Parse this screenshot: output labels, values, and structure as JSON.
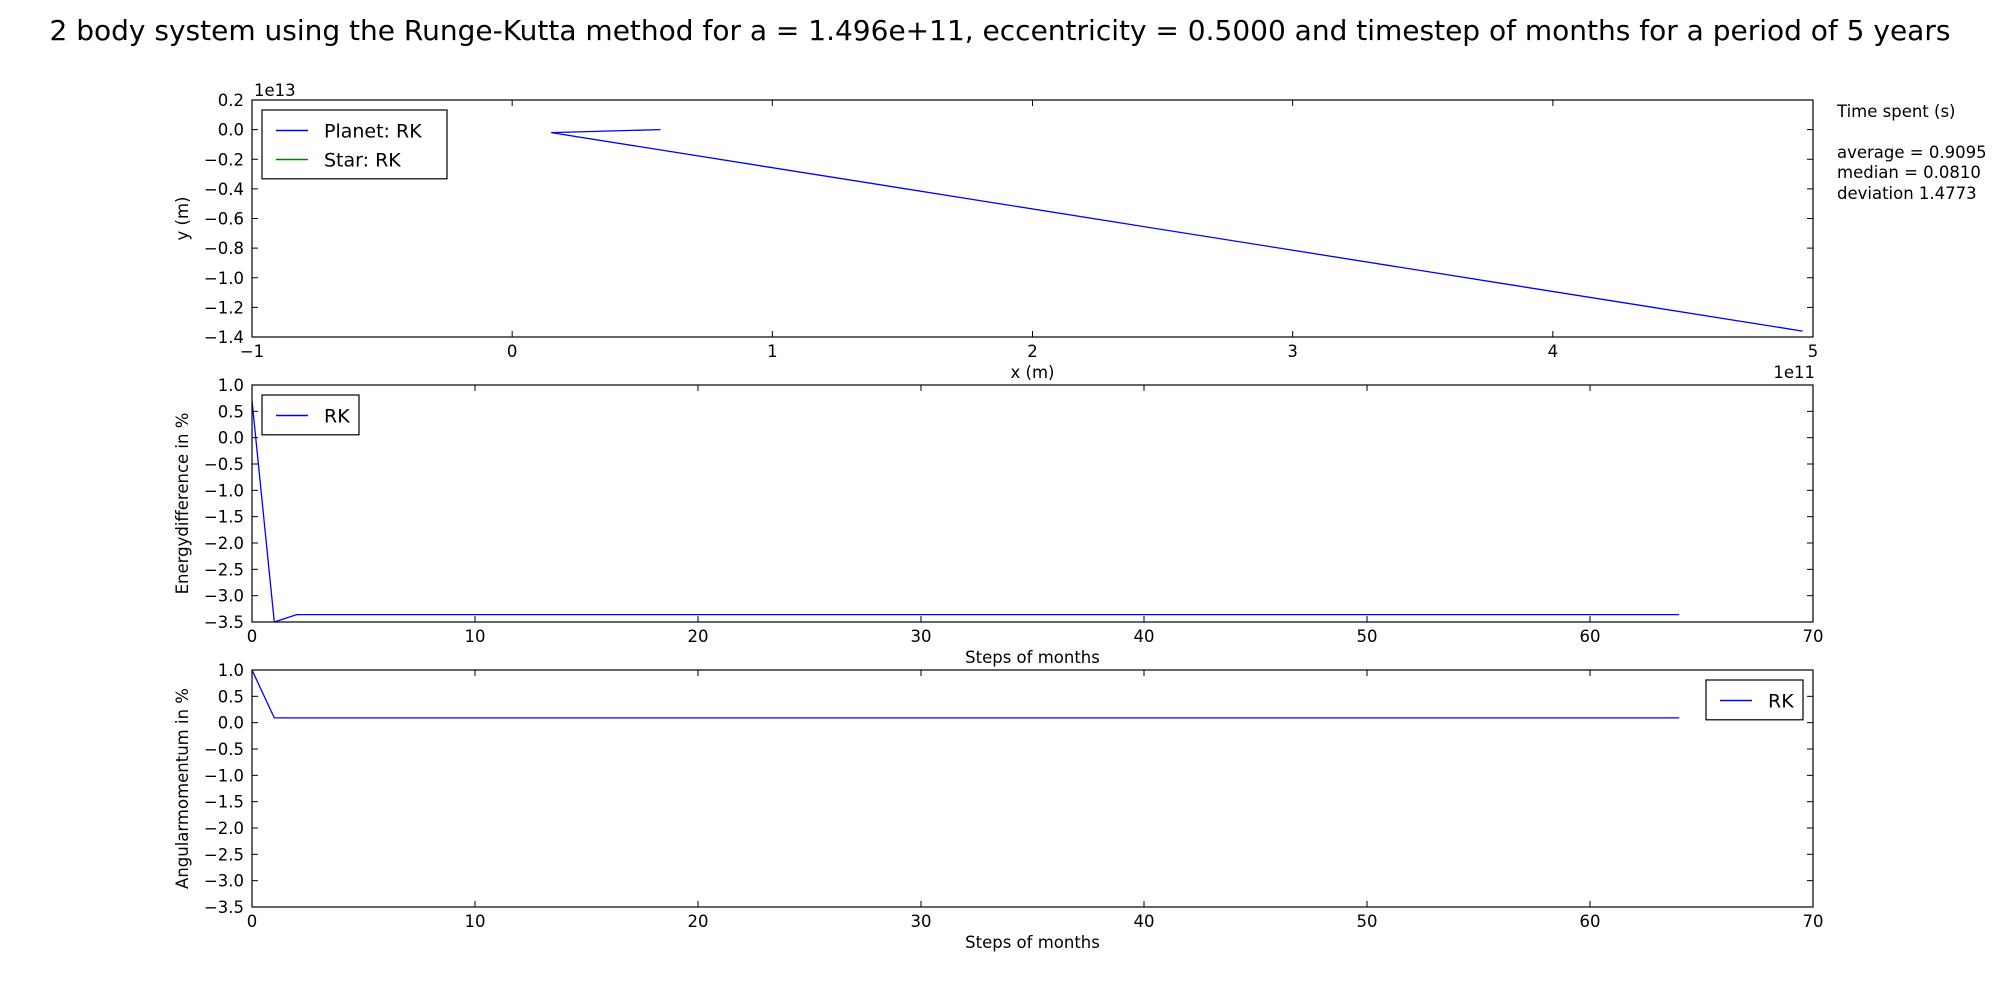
{
  "figure": {
    "title": "2 body system using the Runge-Kutta method for a = 1.496e+11, eccentricity = 0.5000 and timestep of months for a period of 5 years"
  },
  "info_panel": {
    "heading": "Time spent (s)",
    "average": "average = 0.9095",
    "median": "median = 0.0810",
    "deviation": "deviation 1.4773"
  },
  "colors": {
    "series_blue": "#0000ff",
    "series_green": "#008000",
    "axes": "#000000"
  },
  "chart_data": [
    {
      "type": "line",
      "xlabel": "x (m)",
      "ylabel": "y (m)",
      "x_offset_label": "1e11",
      "y_offset_label": "1e13",
      "xlim": [
        -100000000000.0,
        500000000000.0
      ],
      "ylim": [
        -14000000000000.0,
        2000000000000.0
      ],
      "x_ticks": [
        -100000000000.0,
        0,
        100000000000.0,
        200000000000.0,
        300000000000.0,
        400000000000.0,
        500000000000.0
      ],
      "x_tick_labels": [
        "−1",
        "0",
        "1",
        "2",
        "3",
        "4",
        "5"
      ],
      "y_ticks": [
        2000000000000.0,
        0,
        -2000000000000.0,
        -4000000000000.0,
        -6000000000000.0,
        -8000000000000.0,
        -10000000000000.0,
        -12000000000000.0,
        -14000000000000.0
      ],
      "y_tick_labels": [
        "0.2",
        "0.0",
        "−0.2",
        "−0.4",
        "−0.6",
        "−0.8",
        "−1.0",
        "−1.2",
        "−1.4"
      ],
      "legend_position": "upper-left",
      "series": [
        {
          "name": "Planet: RK",
          "color": "#0000ff",
          "x": [
            57000000000.0,
            15000000000.0,
            496000000000.0
          ],
          "y": [
            0.0,
            -200000000000.0,
            -13600000000000.0
          ]
        },
        {
          "name": "Star: RK",
          "color": "#008000",
          "x": [
            0.0
          ],
          "y": [
            0.0
          ]
        }
      ]
    },
    {
      "type": "line",
      "xlabel": "Steps of months",
      "ylabel": "Energydifference in %",
      "xlim": [
        0,
        70
      ],
      "ylim": [
        -3.5,
        1.0
      ],
      "x_ticks": [
        0,
        10,
        20,
        30,
        40,
        50,
        60,
        70
      ],
      "x_tick_labels": [
        "0",
        "10",
        "20",
        "30",
        "40",
        "50",
        "60",
        "70"
      ],
      "y_ticks": [
        1.0,
        0.5,
        0.0,
        -0.5,
        -1.0,
        -1.5,
        -2.0,
        -2.5,
        -3.0,
        -3.5
      ],
      "y_tick_labels": [
        "1.0",
        "0.5",
        "0.0",
        "−0.5",
        "−1.0",
        "−1.5",
        "−2.0",
        "−2.5",
        "−3.0",
        "−3.5"
      ],
      "legend_position": "upper-left",
      "series": [
        {
          "name": "RK",
          "color": "#0000ff",
          "x": [
            0,
            1,
            2,
            10,
            20,
            30,
            40,
            50,
            60,
            64
          ],
          "y": [
            0.7,
            -3.5,
            -3.36,
            -3.36,
            -3.36,
            -3.36,
            -3.36,
            -3.36,
            -3.36,
            -3.36
          ]
        }
      ]
    },
    {
      "type": "line",
      "xlabel": "Steps of months",
      "ylabel": "Angularmomentum in  %",
      "xlim": [
        0,
        70
      ],
      "ylim": [
        -3.5,
        1.0
      ],
      "x_ticks": [
        0,
        10,
        20,
        30,
        40,
        50,
        60,
        70
      ],
      "x_tick_labels": [
        "0",
        "10",
        "20",
        "30",
        "40",
        "50",
        "60",
        "70"
      ],
      "y_ticks": [
        1.0,
        0.5,
        0.0,
        -0.5,
        -1.0,
        -1.5,
        -2.0,
        -2.5,
        -3.0,
        -3.5
      ],
      "y_tick_labels": [
        "1.0",
        "0.5",
        "0.0",
        "−0.5",
        "−1.0",
        "−1.5",
        "−2.0",
        "−2.5",
        "−3.0",
        "−3.5"
      ],
      "legend_position": "upper-right",
      "series": [
        {
          "name": "RK",
          "color": "#0000ff",
          "x": [
            0,
            1,
            10,
            20,
            30,
            40,
            50,
            60,
            64
          ],
          "y": [
            1.0,
            0.09,
            0.09,
            0.09,
            0.09,
            0.09,
            0.09,
            0.09,
            0.09
          ]
        }
      ]
    }
  ]
}
